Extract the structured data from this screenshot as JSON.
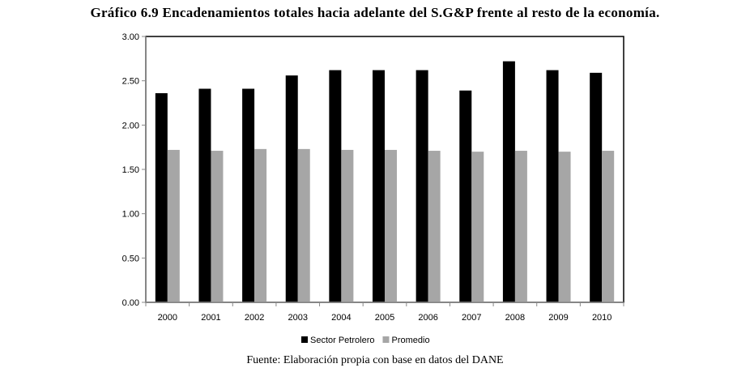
{
  "chart_data": {
    "type": "bar",
    "title": "Gráfico 6.9 Encadenamientos totales hacia adelante del S.G&P  frente al resto de la economía.",
    "source": "Fuente: Elaboración propia con base en datos del DANE",
    "categories": [
      "2000",
      "2001",
      "2002",
      "2003",
      "2004",
      "2005",
      "2006",
      "2007",
      "2008",
      "2009",
      "2010"
    ],
    "series": [
      {
        "name": "Sector Petrolero",
        "color": "#000000",
        "values": [
          2.36,
          2.41,
          2.41,
          2.56,
          2.62,
          2.62,
          2.62,
          2.39,
          2.72,
          2.62,
          2.59
        ]
      },
      {
        "name": "Promedio",
        "color": "#a6a6a6",
        "values": [
          1.72,
          1.71,
          1.73,
          1.73,
          1.72,
          1.72,
          1.71,
          1.7,
          1.71,
          1.7,
          1.71
        ]
      }
    ],
    "ylim": [
      0,
      3
    ],
    "yticks": [
      "0.00",
      "0.50",
      "1.00",
      "1.50",
      "2.00",
      "2.50",
      "3.00"
    ],
    "legend": "bottom",
    "grid": false
  }
}
